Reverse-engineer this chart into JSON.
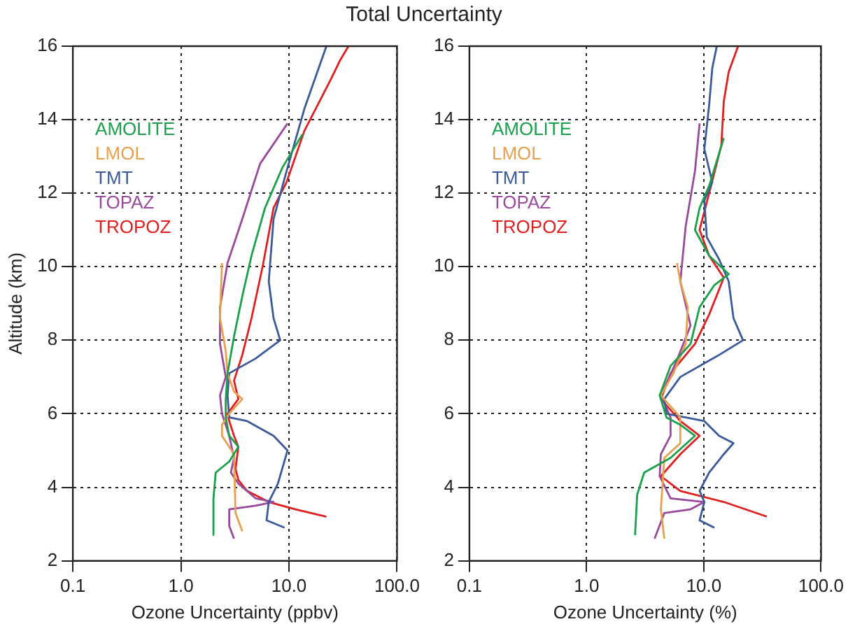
{
  "chart_data": [
    {
      "type": "line",
      "title": "Total Uncertainty",
      "xlabel": "Ozone Uncertainty (ppbv)",
      "ylabel": "Altitude (km)",
      "log": "x",
      "grid": true,
      "legend": "top left",
      "xlim": [
        0.1,
        100
      ],
      "xticks": [
        {
          "value": 0.1,
          "label": "0.1"
        },
        {
          "value": 1,
          "label": "1.0"
        },
        {
          "value": 10,
          "label": "10.0"
        },
        {
          "value": 100,
          "label": "100.0"
        }
      ],
      "ylim": [
        2,
        16
      ],
      "yticks": [
        2,
        4,
        6,
        8,
        10,
        12,
        14,
        16
      ],
      "series": [
        {
          "name": "AMOLITE",
          "color": "#1aa04a",
          "x": [
            2.02,
            2.0,
            2.1,
            2.8,
            3.4,
            2.8,
            2.6,
            2.6,
            2.7,
            3.1,
            3.7,
            4.5,
            6.0,
            8.7,
            13.3
          ],
          "values": [
            2.7,
            3.7,
            4.4,
            4.7,
            5.1,
            5.4,
            5.9,
            6.4,
            7.1,
            8.1,
            9.2,
            10.3,
            11.6,
            12.7,
            13.6
          ]
        },
        {
          "name": "LMOL",
          "color": "#e8a050",
          "x": [
            3.7,
            3.2,
            3.1,
            2.4,
            2.4,
            2.8,
            3.7,
            3.1,
            2.7,
            2.6,
            2.3,
            2.4
          ],
          "values": [
            2.8,
            3.3,
            4.9,
            5.4,
            5.7,
            6.0,
            6.4,
            6.6,
            7.1,
            7.7,
            8.6,
            10.1
          ]
        },
        {
          "name": "TMT",
          "color": "#3a5a9a",
          "x": [
            9.1,
            6.2,
            6.5,
            7.9,
            9.7,
            7.2,
            4.1,
            2.8,
            2.7,
            2.8,
            4.9,
            8.3,
            7.2,
            6.5,
            7.2,
            9.5,
            13.9,
            22.2
          ],
          "values": [
            2.9,
            3.1,
            3.6,
            4.1,
            5.0,
            5.4,
            5.8,
            5.9,
            6.5,
            7.1,
            7.5,
            8.0,
            8.6,
            9.6,
            11.3,
            12.6,
            14.3,
            16.0
          ]
        },
        {
          "name": "TOPAZ",
          "color": "#9a4a9a",
          "x": [
            3.1,
            2.8,
            2.8,
            4.9,
            7.2,
            4.9,
            3.4,
            2.9,
            3.1,
            2.8,
            2.4,
            2.3,
            2.6,
            2.3,
            2.3,
            2.7,
            3.7,
            5.4,
            9.7
          ],
          "values": [
            2.6,
            2.95,
            3.4,
            3.5,
            3.6,
            3.7,
            4.1,
            4.4,
            4.8,
            5.4,
            6.0,
            6.5,
            7.0,
            7.9,
            8.9,
            10.1,
            11.3,
            12.8,
            13.9
          ]
        },
        {
          "name": "TROPOZ",
          "color": "#e02020",
          "x": [
            22.2,
            11.5,
            6.5,
            4.1,
            3.4,
            3.2,
            3.4,
            3.1,
            2.8,
            2.7,
            3.4,
            3.1,
            3.7,
            4.5,
            5.7,
            7.2,
            9.5,
            13.9,
            24.4,
            29.5,
            35.5
          ],
          "values": [
            3.2,
            3.4,
            3.6,
            3.9,
            4.2,
            4.5,
            5.1,
            5.4,
            5.8,
            6.0,
            6.4,
            6.9,
            7.6,
            8.6,
            10.0,
            11.6,
            12.3,
            13.7,
            15.1,
            15.6,
            16.0
          ]
        }
      ]
    },
    {
      "type": "line",
      "xlabel": "Ozone Uncertainty (%)",
      "log": "x",
      "grid": true,
      "legend": "top left",
      "xlim": [
        0.1,
        100
      ],
      "xticks": [
        {
          "value": 0.1,
          "label": "0.1"
        },
        {
          "value": 1,
          "label": "1.0"
        },
        {
          "value": 10,
          "label": "10.0"
        },
        {
          "value": 100,
          "label": "100.0"
        }
      ],
      "ylim": [
        2,
        16
      ],
      "yticks": [
        2,
        4,
        6,
        8,
        10,
        12,
        14,
        16
      ],
      "series": [
        {
          "name": "AMOLITE",
          "color": "#1aa04a",
          "x": [
            2.59,
            2.7,
            3.1,
            5.2,
            8.4,
            6.3,
            4.8,
            4.2,
            5.2,
            7.7,
            9.2,
            12.3,
            16.3,
            11.1,
            8.4,
            9.2,
            11.1,
            14.8
          ],
          "values": [
            2.7,
            3.8,
            4.4,
            4.8,
            5.4,
            5.7,
            5.9,
            6.5,
            7.3,
            7.9,
            8.9,
            9.5,
            9.8,
            10.3,
            11.0,
            11.6,
            12.2,
            13.5
          ]
        },
        {
          "name": "LMOL",
          "color": "#e8a050",
          "x": [
            4.6,
            4.3,
            4.6,
            6.3,
            6.3,
            4.3,
            5.5,
            7.0,
            7.3,
            6.3,
            5.9
          ],
          "values": [
            2.6,
            3.4,
            4.8,
            5.2,
            5.9,
            6.5,
            7.1,
            7.9,
            8.9,
            9.6,
            10.1
          ]
        },
        {
          "name": "TMT",
          "color": "#3a5a9a",
          "x": [
            12.3,
            9.2,
            10.1,
            9.2,
            11.1,
            14.8,
            17.9,
            13.5,
            10.1,
            4.8,
            4.6,
            6.3,
            13.5,
            21.6,
            17.9,
            16.3,
            13.5,
            10.6,
            10.1,
            11.8,
            10.1,
            11.1,
            11.8,
            12.9
          ],
          "values": [
            2.9,
            3.1,
            3.6,
            3.9,
            4.4,
            4.9,
            5.2,
            5.4,
            5.8,
            6.0,
            6.4,
            7.0,
            7.6,
            8.0,
            8.6,
            9.6,
            10.2,
            10.8,
            11.8,
            12.3,
            13.2,
            14.4,
            15.4,
            16.0
          ]
        },
        {
          "name": "TOPAZ",
          "color": "#9a4a9a",
          "x": [
            3.8,
            4.6,
            7.7,
            10.1,
            5.2,
            4.2,
            4.3,
            5.2,
            5.2,
            4.3,
            5.8,
            7.7,
            6.3,
            7.0,
            8.4,
            9.2
          ],
          "values": [
            2.6,
            3.3,
            3.4,
            3.6,
            3.7,
            4.3,
            4.9,
            5.4,
            5.9,
            6.5,
            7.4,
            8.4,
            9.6,
            11.1,
            12.6,
            13.9
          ]
        },
        {
          "name": "TROPOZ",
          "color": "#e02020",
          "x": [
            34.5,
            14.8,
            6.3,
            4.3,
            6.3,
            9.2,
            6.3,
            4.3,
            5.2,
            8.4,
            11.1,
            14.8,
            11.1,
            9.2,
            11.1,
            14.1,
            14.8,
            16.3,
            19.6
          ],
          "values": [
            3.2,
            3.6,
            3.9,
            4.3,
            4.9,
            5.4,
            5.8,
            6.4,
            7.1,
            7.9,
            8.7,
            9.7,
            10.3,
            11.0,
            12.0,
            13.3,
            14.5,
            15.3,
            16.0
          ]
        }
      ]
    }
  ]
}
